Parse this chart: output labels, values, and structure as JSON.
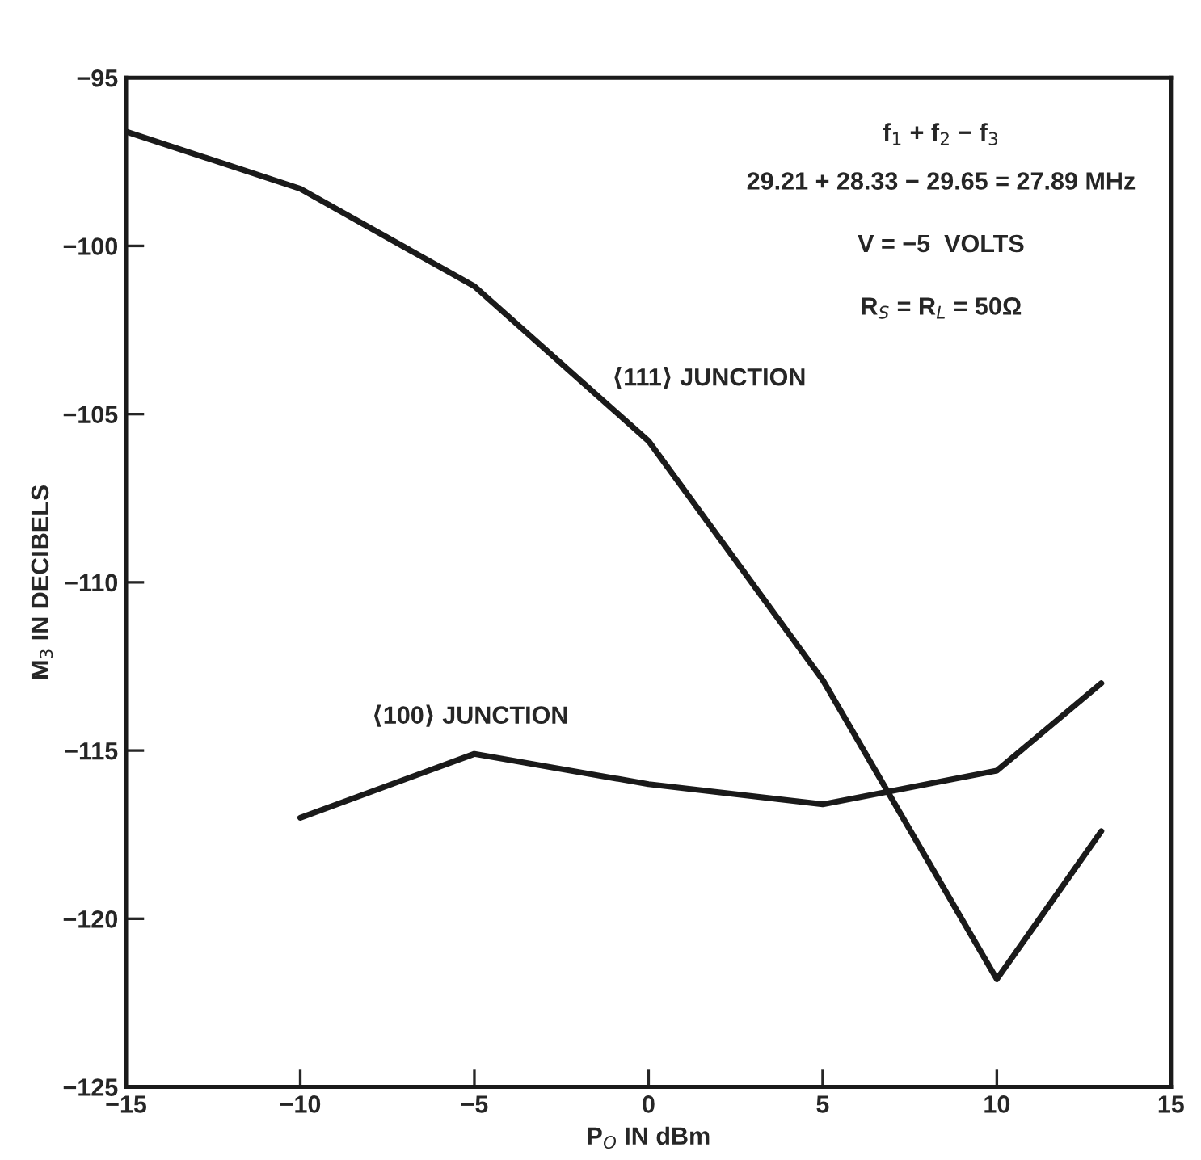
{
  "chart_data": {
    "type": "line",
    "xlabel": "P$_{O}$ IN dBm",
    "ylabel": "M$_{3}$ IN DECIBELS",
    "xlim": [
      -15,
      15
    ],
    "ylim": [
      -125,
      -95
    ],
    "xticks": [
      {
        "value": -15,
        "label": "−15"
      },
      {
        "value": -10,
        "label": "−10"
      },
      {
        "value": -5,
        "label": "−5"
      },
      0,
      5,
      10,
      15
    ],
    "yticks": [
      {
        "value": -125,
        "label": "−125"
      },
      {
        "value": -120,
        "label": "−120"
      },
      {
        "value": -115,
        "label": "−115"
      },
      {
        "value": -110,
        "label": "−110"
      },
      {
        "value": -105,
        "label": "−105"
      },
      {
        "value": -100,
        "label": "−100"
      },
      {
        "value": -95,
        "label": "−95"
      }
    ],
    "grid": false,
    "legend": false,
    "marker": "none",
    "line_style": "solid",
    "series": [
      {
        "color": "#1a1a1a",
        "x": [
          -15,
          -10,
          -5,
          0,
          5,
          10,
          13
        ],
        "values": [
          -96.6,
          -98.3,
          -101.2,
          -105.8,
          -112.9,
          -121.8,
          -117.4
        ]
      },
      {
        "color": "#1a1a1a",
        "x": [
          -10,
          -5,
          0,
          5,
          10,
          13
        ],
        "values": [
          -117.0,
          -115.1,
          -116.0,
          -116.6,
          -115.6,
          -113.0
        ]
      }
    ],
    "annotations": [
      "⟨111⟩ JUNCTION",
      "⟨100⟩ JUNCTION",
      "f$_{1}$ + f$_{2}$ − f$_{3}$",
      "29.21 + 28.33 − 29.65 = 27.89 MHz",
      "V = −5  VOLTS",
      "R$_{S}$ = R$_{L}$ = 50Ω"
    ]
  }
}
